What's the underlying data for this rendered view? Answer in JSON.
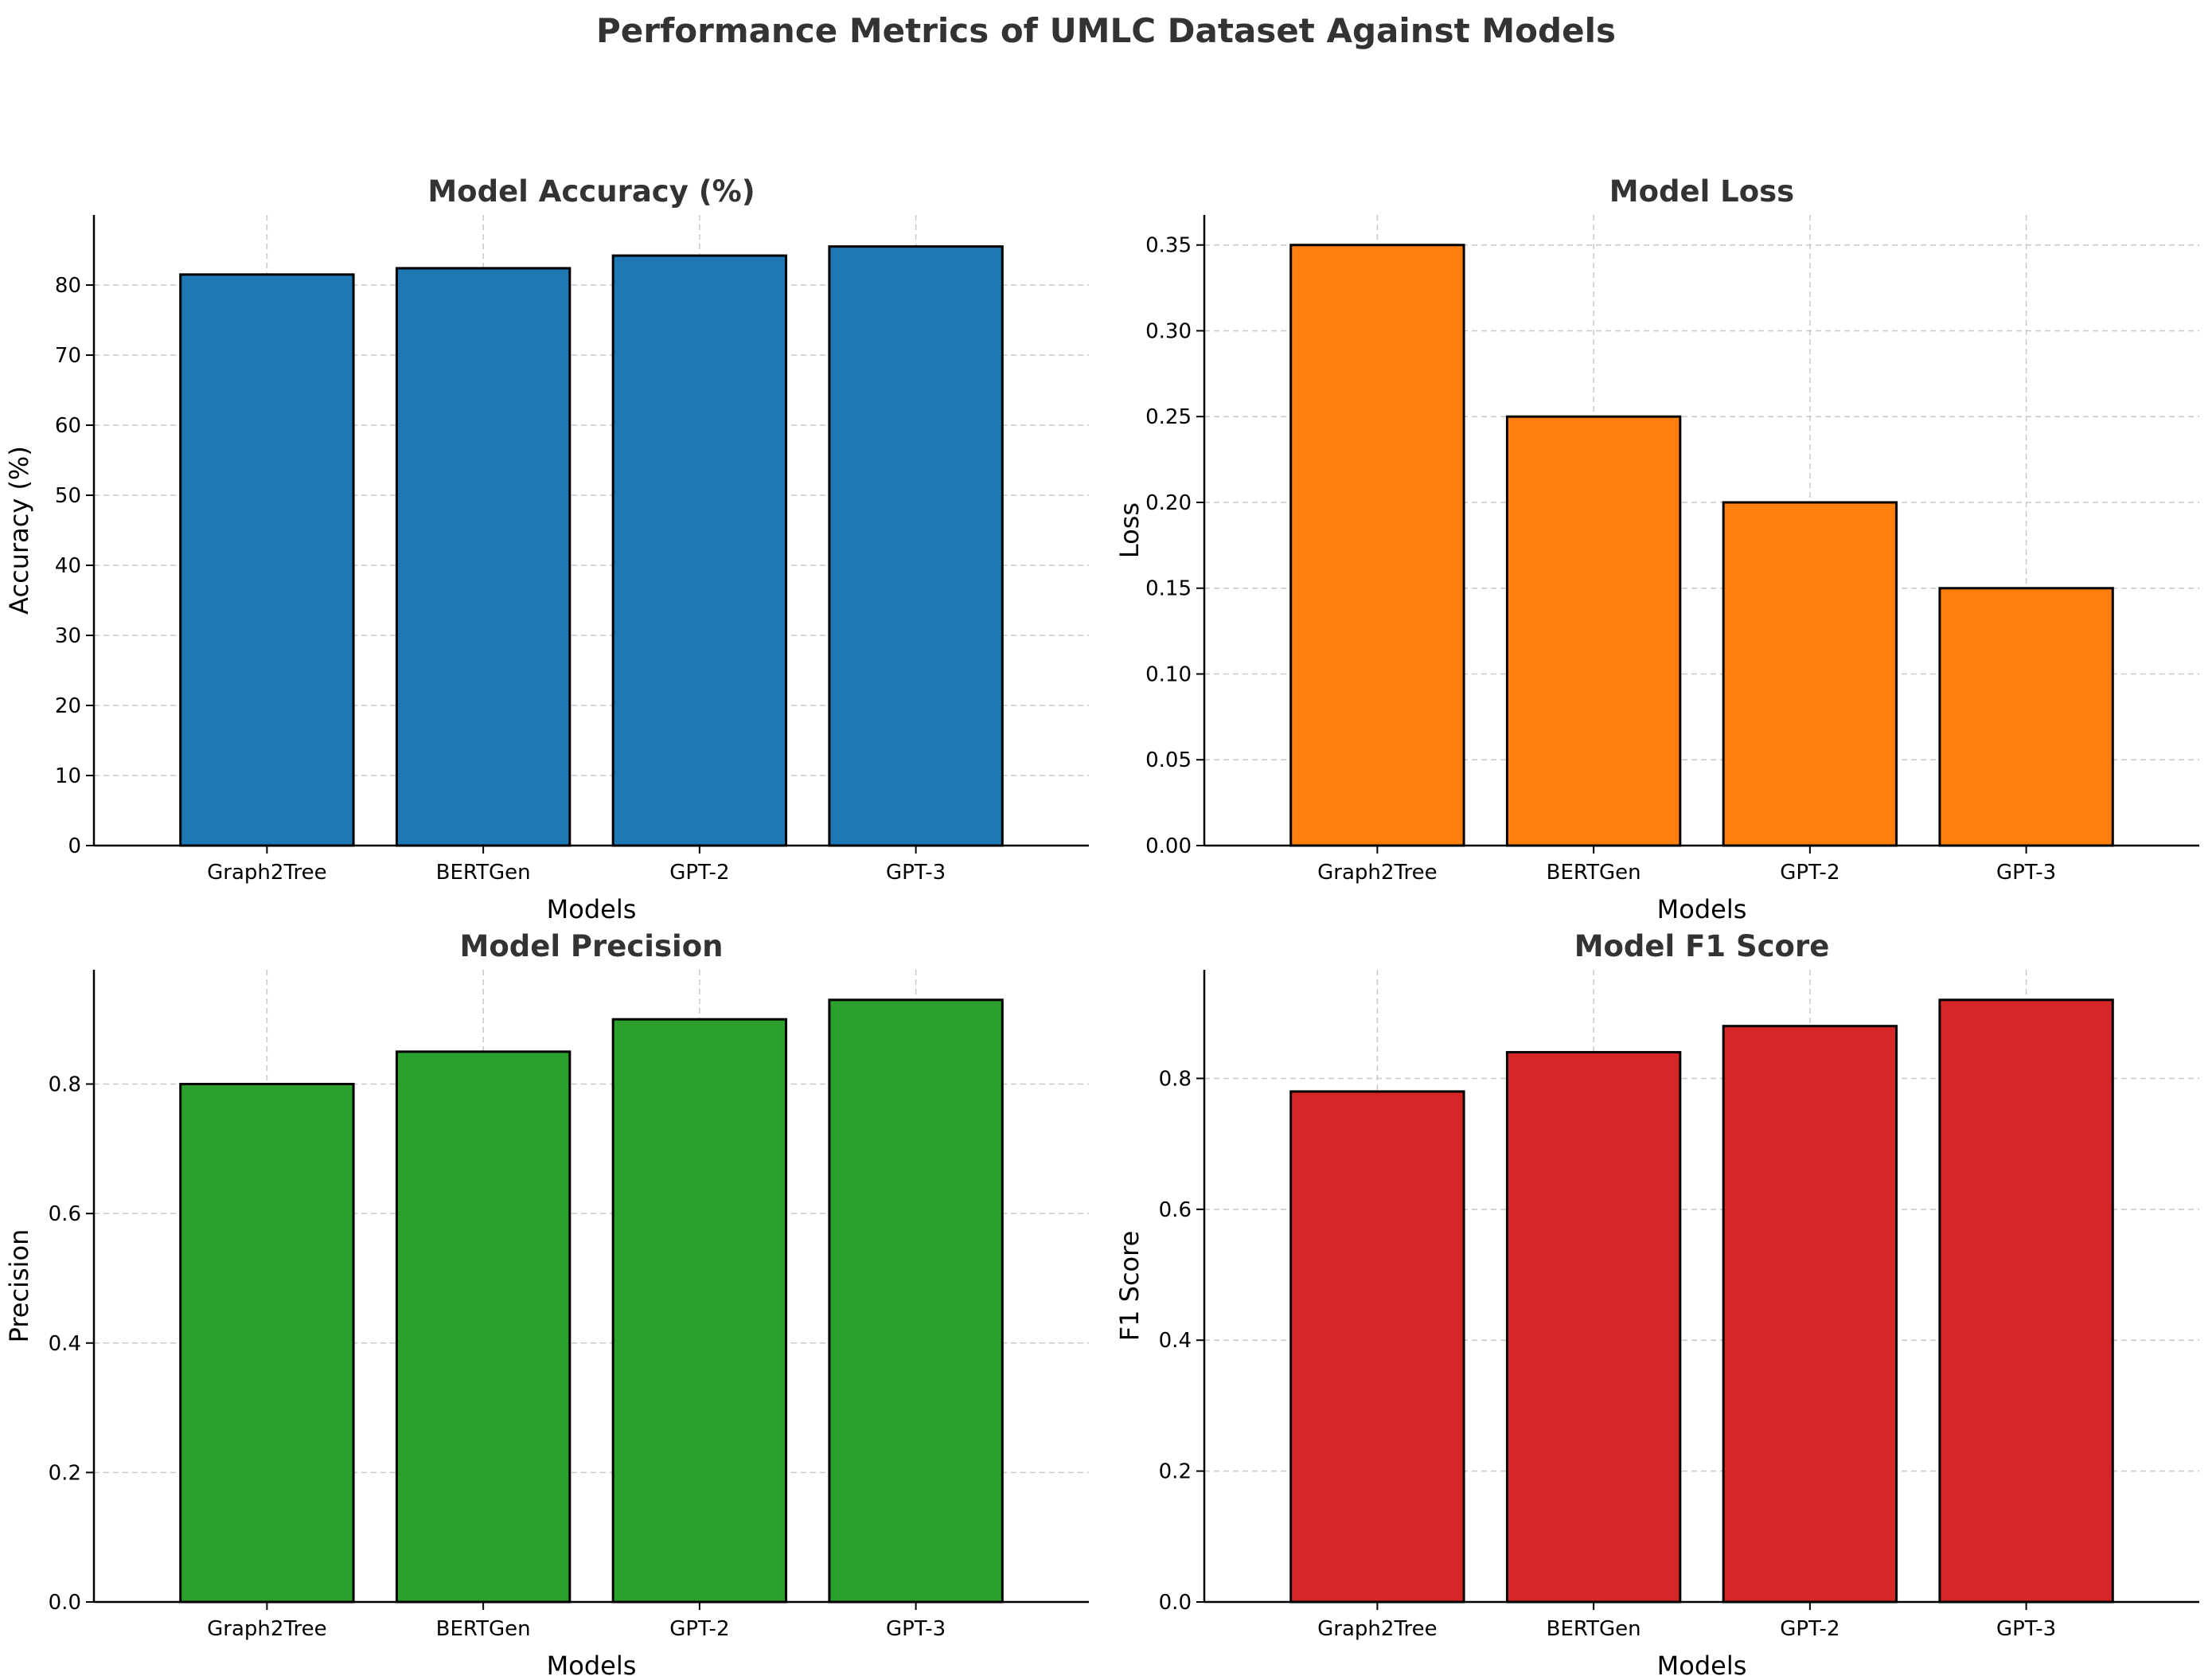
{
  "figure": {
    "title": "Performance Metrics of UMLC Dataset Against Models"
  },
  "chart_data": [
    {
      "type": "bar",
      "title": "Model Accuracy (%)",
      "xlabel": "Models",
      "ylabel": "Accuracy (%)",
      "categories": [
        "Graph2Tree",
        "BERTGen",
        "GPT-2",
        "GPT-3"
      ],
      "values": [
        81.5,
        82.4,
        84.2,
        85.5
      ],
      "ylim": [
        0,
        90
      ],
      "yticks": [
        0,
        10,
        20,
        30,
        40,
        50,
        60,
        70,
        80
      ],
      "tick_decimals": 0,
      "color": "#1f77b4",
      "grid": true
    },
    {
      "type": "bar",
      "title": "Model Loss",
      "xlabel": "Models",
      "ylabel": "Loss",
      "categories": [
        "Graph2Tree",
        "BERTGen",
        "GPT-2",
        "GPT-3"
      ],
      "values": [
        0.35,
        0.25,
        0.2,
        0.15
      ],
      "ylim": [
        0,
        0.3675
      ],
      "yticks": [
        0.0,
        0.05,
        0.1,
        0.15,
        0.2,
        0.25,
        0.3,
        0.35
      ],
      "tick_decimals": 2,
      "color": "#ff7f0e",
      "grid": true
    },
    {
      "type": "bar",
      "title": "Model Precision",
      "xlabel": "Models",
      "ylabel": "Precision",
      "categories": [
        "Graph2Tree",
        "BERTGen",
        "GPT-2",
        "GPT-3"
      ],
      "values": [
        0.8,
        0.85,
        0.9,
        0.93
      ],
      "ylim": [
        0,
        0.9765
      ],
      "yticks": [
        0.0,
        0.2,
        0.4,
        0.6,
        0.8
      ],
      "tick_decimals": 1,
      "color": "#2ca02c",
      "grid": true
    },
    {
      "type": "bar",
      "title": "Model F1 Score",
      "xlabel": "Models",
      "ylabel": "F1 Score",
      "categories": [
        "Graph2Tree",
        "BERTGen",
        "GPT-2",
        "GPT-3"
      ],
      "values": [
        0.78,
        0.84,
        0.88,
        0.92
      ],
      "ylim": [
        0,
        0.966
      ],
      "yticks": [
        0.0,
        0.2,
        0.4,
        0.6,
        0.8
      ],
      "tick_decimals": 1,
      "color": "#d62728",
      "grid": true
    }
  ]
}
